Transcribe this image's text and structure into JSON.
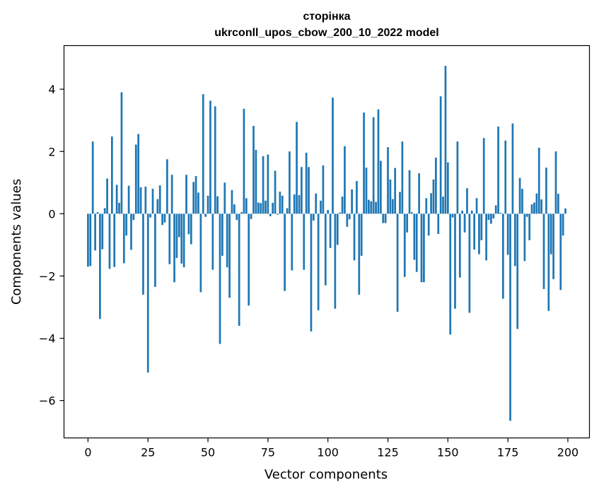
{
  "chart_data": {
    "type": "bar",
    "title": "сторінка",
    "subtitle": "ukrconll_upos_cbow_200_10_2022 model",
    "xlabel": "Vector components",
    "ylabel": "Components values",
    "xlim": [
      -10,
      209
    ],
    "ylim": [
      -7.2,
      5.4
    ],
    "xticks": [
      0,
      25,
      50,
      75,
      100,
      125,
      150,
      175,
      200
    ],
    "xtick_labels": [
      "0",
      "25",
      "50",
      "75",
      "100",
      "125",
      "150",
      "175",
      "200"
    ],
    "yticks": [
      -6,
      -4,
      -2,
      0,
      2,
      4
    ],
    "ytick_labels": [
      "−6",
      "−4",
      "−2",
      "0",
      "2",
      "4"
    ],
    "grid": false,
    "bar_color": "#1f77b4",
    "x": [
      0,
      1,
      2,
      3,
      4,
      5,
      6,
      7,
      8,
      9,
      10,
      11,
      12,
      13,
      14,
      15,
      16,
      17,
      18,
      19,
      20,
      21,
      22,
      23,
      24,
      25,
      26,
      27,
      28,
      29,
      30,
      31,
      32,
      33,
      34,
      35,
      36,
      37,
      38,
      39,
      40,
      41,
      42,
      43,
      44,
      45,
      46,
      47,
      48,
      49,
      50,
      51,
      52,
      53,
      54,
      55,
      56,
      57,
      58,
      59,
      60,
      61,
      62,
      63,
      64,
      65,
      66,
      67,
      68,
      69,
      70,
      71,
      72,
      73,
      74,
      75,
      76,
      77,
      78,
      79,
      80,
      81,
      82,
      83,
      84,
      85,
      86,
      87,
      88,
      89,
      90,
      91,
      92,
      93,
      94,
      95,
      96,
      97,
      98,
      99,
      100,
      101,
      102,
      103,
      104,
      105,
      106,
      107,
      108,
      109,
      110,
      111,
      112,
      113,
      114,
      115,
      116,
      117,
      118,
      119,
      120,
      121,
      122,
      123,
      124,
      125,
      126,
      127,
      128,
      129,
      130,
      131,
      132,
      133,
      134,
      135,
      136,
      137,
      138,
      139,
      140,
      141,
      142,
      143,
      144,
      145,
      146,
      147,
      148,
      149,
      150,
      151,
      152,
      153,
      154,
      155,
      156,
      157,
      158,
      159,
      160,
      161,
      162,
      163,
      164,
      165,
      166,
      167,
      168,
      169,
      170,
      171,
      172,
      173,
      174,
      175,
      176,
      177,
      178,
      179,
      180,
      181,
      182,
      183,
      184,
      185,
      186,
      187,
      188,
      189,
      190,
      191,
      192,
      193,
      194,
      195,
      196,
      197,
      198,
      199
    ],
    "values": [
      -1.7,
      -1.68,
      2.32,
      -1.18,
      0.05,
      -3.38,
      -1.14,
      0.18,
      1.13,
      -1.77,
      2.48,
      -1.71,
      0.93,
      0.35,
      3.9,
      -1.59,
      -0.7,
      0.9,
      -1.16,
      -0.2,
      2.22,
      2.56,
      0.85,
      -2.6,
      0.87,
      -5.1,
      -0.12,
      0.8,
      -2.35,
      0.47,
      0.91,
      -0.36,
      -0.28,
      1.75,
      -1.62,
      1.25,
      -2.2,
      -1.42,
      -0.75,
      -1.6,
      -1.72,
      1.25,
      -0.66,
      -0.98,
      1.02,
      1.21,
      0.68,
      -2.52,
      3.84,
      -0.1,
      0.58,
      3.63,
      -1.8,
      3.45,
      0.56,
      -4.18,
      -1.35,
      1.0,
      -1.72,
      -2.7,
      0.76,
      0.3,
      -0.2,
      -3.6,
      0.05,
      3.37,
      0.5,
      -2.95,
      -0.17,
      2.82,
      2.05,
      0.36,
      0.34,
      1.85,
      0.42,
      1.9,
      -0.08,
      0.35,
      1.38,
      -0.03,
      0.71,
      0.58,
      -2.48,
      0.18,
      2.0,
      -1.82,
      0.62,
      2.95,
      0.6,
      1.5,
      -1.8,
      1.96,
      1.5,
      -3.78,
      -0.22,
      0.65,
      -3.1,
      0.42,
      1.55,
      -2.3,
      0.12,
      -1.1,
      3.73,
      -3.05,
      -1.0,
      0.04,
      0.55,
      2.17,
      -0.42,
      -0.18,
      0.78,
      -1.5,
      1.05,
      -2.6,
      -1.35,
      3.25,
      1.48,
      0.45,
      0.4,
      3.1,
      0.38,
      3.35,
      1.7,
      -0.3,
      -0.3,
      2.14,
      1.1,
      0.47,
      1.47,
      -3.15,
      0.7,
      2.32,
      -2.03,
      -0.6,
      1.4,
      0.05,
      -1.48,
      -1.87,
      1.3,
      -2.2,
      -2.2,
      0.5,
      -0.7,
      0.66,
      1.1,
      1.8,
      -0.65,
      3.77,
      0.55,
      4.75,
      1.65,
      -3.88,
      -0.12,
      -3.05,
      2.32,
      -2.05,
      0.1,
      -0.6,
      0.82,
      -3.18,
      0.1,
      -1.15,
      0.5,
      -1.3,
      -0.85,
      2.43,
      -1.5,
      -0.2,
      -0.32,
      -0.15,
      0.27,
      2.8,
      0.03,
      -2.73,
      2.35,
      -1.32,
      -6.65,
      2.9,
      -1.68,
      -3.7,
      1.15,
      0.8,
      -1.52,
      -0.1,
      -0.85,
      0.3,
      0.36,
      0.65,
      2.12,
      0.46,
      -2.42,
      1.48,
      -3.12,
      -1.3,
      -2.1,
      2.0,
      0.64,
      -2.45,
      -0.7,
      0.17
    ]
  }
}
